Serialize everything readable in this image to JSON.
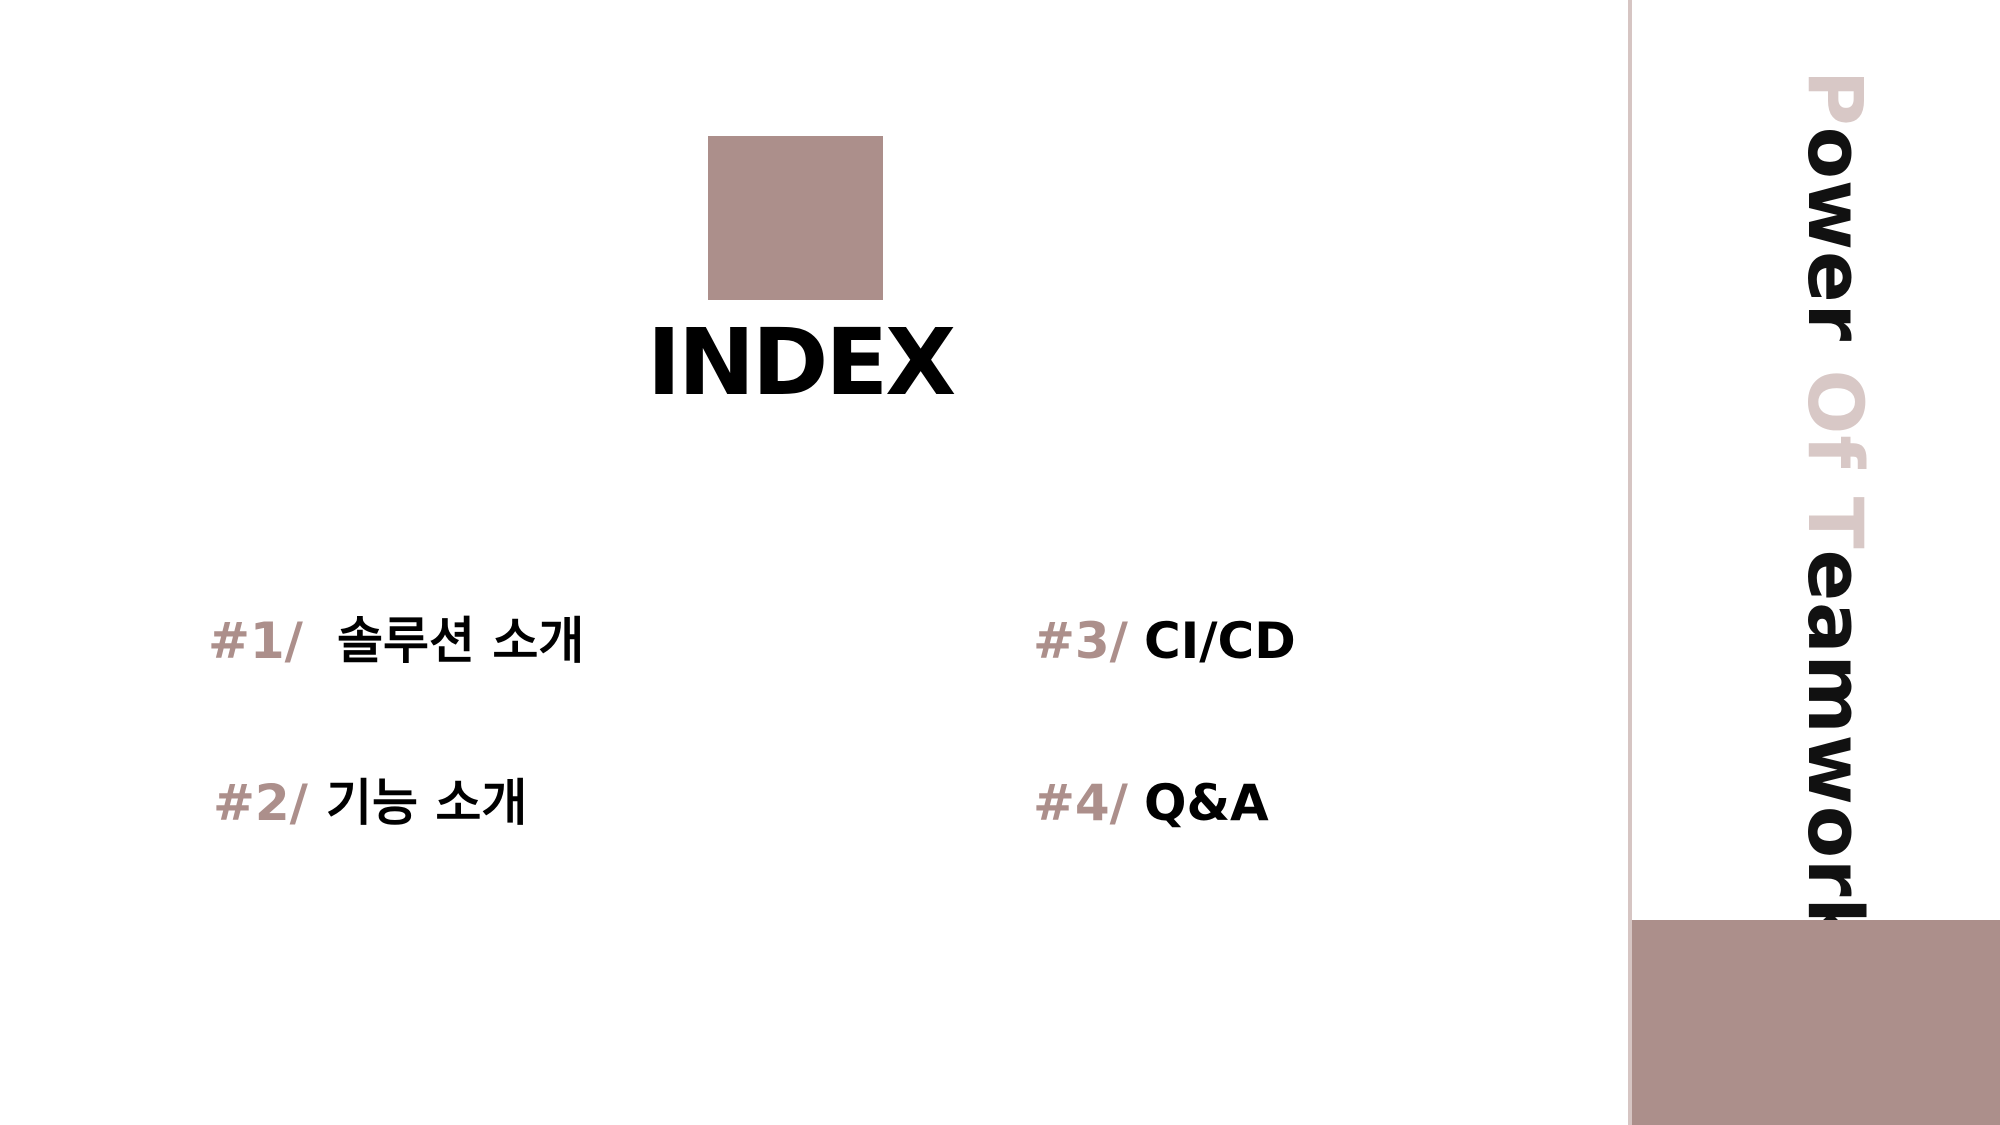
{
  "slide": {
    "title": "INDEX",
    "items": [
      {
        "number": "#1/",
        "label": "솔루션 소개"
      },
      {
        "number": "#2/",
        "label": "기능 소개"
      },
      {
        "number": "#3/",
        "label": "CI/CD"
      },
      {
        "number": "#4/",
        "label": "Q&A"
      }
    ],
    "side_text": {
      "part1": "P",
      "part2": "ower ",
      "part3": "Of ",
      "part4": "T",
      "part5": "eamwork"
    }
  },
  "colors": {
    "accent": "#ac8f8b",
    "accent_light": "#d8c8c6",
    "divider": "#d6c5c3",
    "text": "#000000",
    "background": "#ffffff"
  }
}
